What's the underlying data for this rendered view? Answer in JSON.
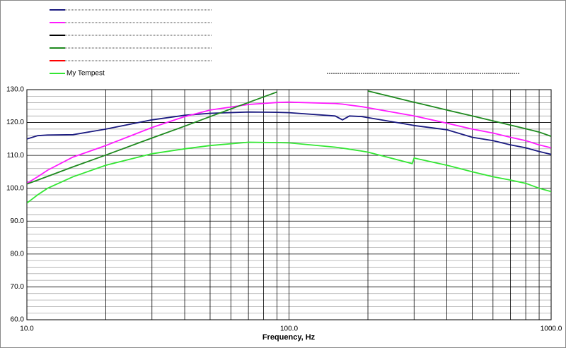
{
  "chart_data": {
    "type": "line",
    "x_label": "Frequency, Hz",
    "x": [
      10,
      11,
      12,
      15,
      20,
      30,
      40,
      50,
      70,
      90,
      100,
      150,
      160,
      170,
      190,
      200,
      295,
      300,
      400,
      500,
      600,
      700,
      800,
      900,
      1000
    ],
    "series": [
      {
        "color": "#1a1a80",
        "values": [
          115,
          116,
          116.2,
          116.3,
          118,
          120.8,
          122.2,
          122.8,
          123.2,
          123.1,
          123,
          122,
          120.8,
          122,
          121.8,
          121.5,
          119.2,
          119.1,
          117.8,
          115.5,
          114.5,
          113.2,
          112.3,
          111.2,
          110.3
        ]
      },
      {
        "color": "#ff1aff",
        "values": [
          101.5,
          103.5,
          105.5,
          109.5,
          113,
          118.5,
          121.8,
          123.8,
          125.5,
          126.1,
          126.2,
          125.8,
          125.6,
          125.3,
          124.8,
          124.5,
          122.1,
          122,
          119.8,
          118,
          116.8,
          115.5,
          114.5,
          113.2,
          112.3
        ]
      },
      {
        "color": "#000000",
        "values": [
          null,
          null,
          null,
          null,
          null,
          null,
          null,
          null,
          null,
          null,
          null,
          null,
          null,
          null,
          null,
          null,
          null,
          null,
          null,
          null,
          null,
          null,
          null,
          null,
          null
        ]
      },
      {
        "color": "#1e8a1e",
        "values": [
          101.3,
          102.5,
          103.6,
          106.5,
          110.1,
          115.3,
          118.9,
          121.8,
          126.1,
          129.3,
          null,
          null,
          null,
          null,
          null,
          129.6,
          126.3,
          126.2,
          123.8,
          122,
          120.5,
          119.2,
          118.1,
          117.1,
          115.8
        ]
      },
      {
        "color": "#ff0000",
        "values": [
          null,
          null,
          null,
          null,
          null,
          null,
          null,
          null,
          null,
          null,
          null,
          null,
          null,
          null,
          null,
          null,
          null,
          null,
          null,
          null,
          null,
          null,
          null,
          null,
          null
        ]
      },
      {
        "name": "My Tempest",
        "color": "#33e633",
        "values": [
          95.5,
          98,
          100,
          103.5,
          107,
          110.5,
          112,
          113,
          114,
          113.9,
          113.8,
          112.5,
          112.2,
          111.9,
          111.3,
          111,
          107.5,
          109.2,
          107,
          105,
          103.5,
          102.5,
          101.5,
          100,
          99
        ]
      }
    ],
    "xlog": true,
    "xlim": [
      10,
      1000
    ],
    "xticks": [
      {
        "value": 10,
        "label": "10.0"
      },
      {
        "value": 100,
        "label": "100.0"
      },
      {
        "value": 1000,
        "label": "1000.0"
      }
    ],
    "xgrid_minor": [
      20,
      30,
      40,
      50,
      60,
      70,
      80,
      90,
      200,
      300,
      400,
      500,
      600,
      700,
      800,
      900
    ],
    "ylim": [
      60,
      130
    ],
    "yticks": [
      {
        "value": 60,
        "label": "60.0"
      },
      {
        "value": 70,
        "label": "70.0"
      },
      {
        "value": 80,
        "label": "80.0"
      },
      {
        "value": 90,
        "label": "90.0"
      },
      {
        "value": 100,
        "label": "100.0"
      },
      {
        "value": 110,
        "label": "110.0"
      },
      {
        "value": 120,
        "label": "120.0"
      },
      {
        "value": 130,
        "label": "130.0"
      }
    ],
    "ygrid_minor": [
      62,
      64,
      66,
      68,
      72,
      74,
      76,
      78,
      82,
      84,
      86,
      88,
      92,
      94,
      96,
      98,
      102,
      104,
      106,
      108,
      112,
      114,
      116,
      118,
      122,
      124,
      126,
      128
    ],
    "grid": true
  }
}
